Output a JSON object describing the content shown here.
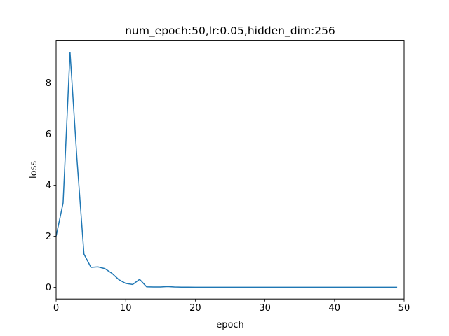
{
  "chart_data": {
    "type": "line",
    "title": "num_epoch:50,lr:0.05,hidden_dim:256",
    "xlabel": "epoch",
    "ylabel": "loss",
    "xlim": [
      0,
      50
    ],
    "ylim": [
      -0.46,
      9.67
    ],
    "xticks": [
      0,
      10,
      20,
      30,
      40,
      50
    ],
    "yticks": [
      0,
      2,
      4,
      6,
      8
    ],
    "grid": false,
    "legend": "none",
    "series": [
      {
        "color": "#1f77b4",
        "x": [
          0,
          1,
          2,
          3,
          4,
          5,
          6,
          7,
          8,
          9,
          10,
          11,
          12,
          13,
          14,
          15,
          16,
          17,
          18,
          19,
          20,
          21,
          22,
          23,
          24,
          25,
          26,
          27,
          28,
          29,
          30,
          31,
          32,
          33,
          34,
          35,
          36,
          37,
          38,
          39,
          40,
          41,
          42,
          43,
          44,
          45,
          46,
          47,
          48,
          49
        ],
        "y": [
          2.0,
          3.3,
          9.2,
          5.0,
          1.3,
          0.78,
          0.8,
          0.73,
          0.55,
          0.3,
          0.15,
          0.11,
          0.31,
          0.02,
          0.01,
          0.01,
          0.03,
          0.01,
          0.005,
          0.003,
          0.002,
          0.001,
          0.001,
          0.001,
          0.001,
          0.001,
          0.001,
          0.001,
          0.001,
          0.001,
          0.001,
          0.001,
          0.001,
          0.001,
          0.001,
          0.001,
          0.001,
          0.001,
          0.001,
          0.001,
          0.001,
          0.001,
          0.001,
          0.001,
          0.001,
          0.001,
          0.001,
          0.001,
          0.001,
          0.001
        ]
      }
    ]
  }
}
